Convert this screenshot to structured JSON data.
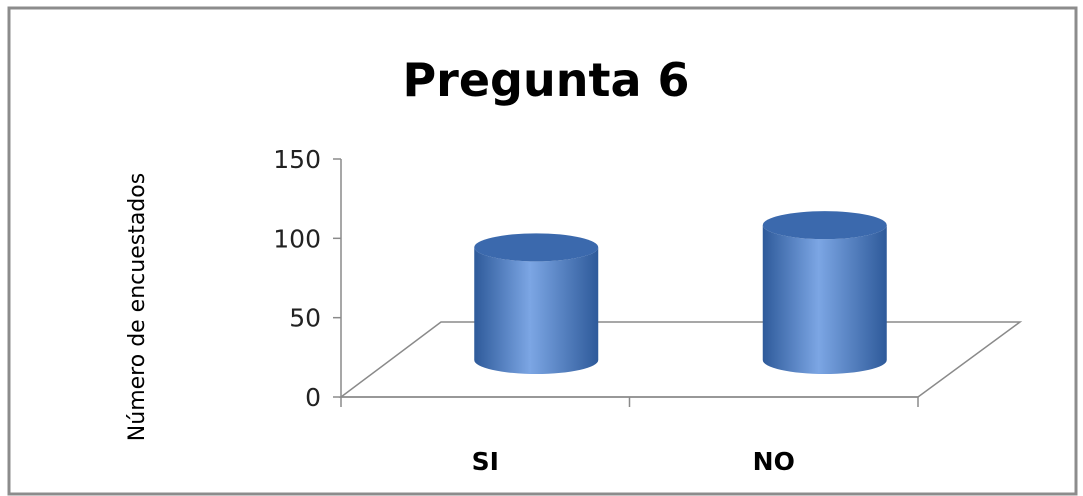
{
  "chart_data": {
    "type": "bar",
    "title": "Pregunta 6",
    "xlabel": "",
    "ylabel": "Número de encuestados",
    "categories": [
      "SI",
      "NO"
    ],
    "values": [
      71,
      85
    ],
    "ylim": [
      0,
      150
    ],
    "yticks": [
      "0",
      "50",
      "100",
      "150"
    ],
    "grid": false,
    "legend": "none",
    "bar_style": "3d-cylinder",
    "colors": {
      "bar_dark": "#2e5a9a",
      "bar_mid": "#4a7dc6",
      "bar_light": "#7ca6e4",
      "bar_top": "#3b69ad",
      "axis": "#8a8a8a",
      "frame": "#8c8c8c",
      "text": "#000000",
      "tick_text": "#222222"
    }
  }
}
